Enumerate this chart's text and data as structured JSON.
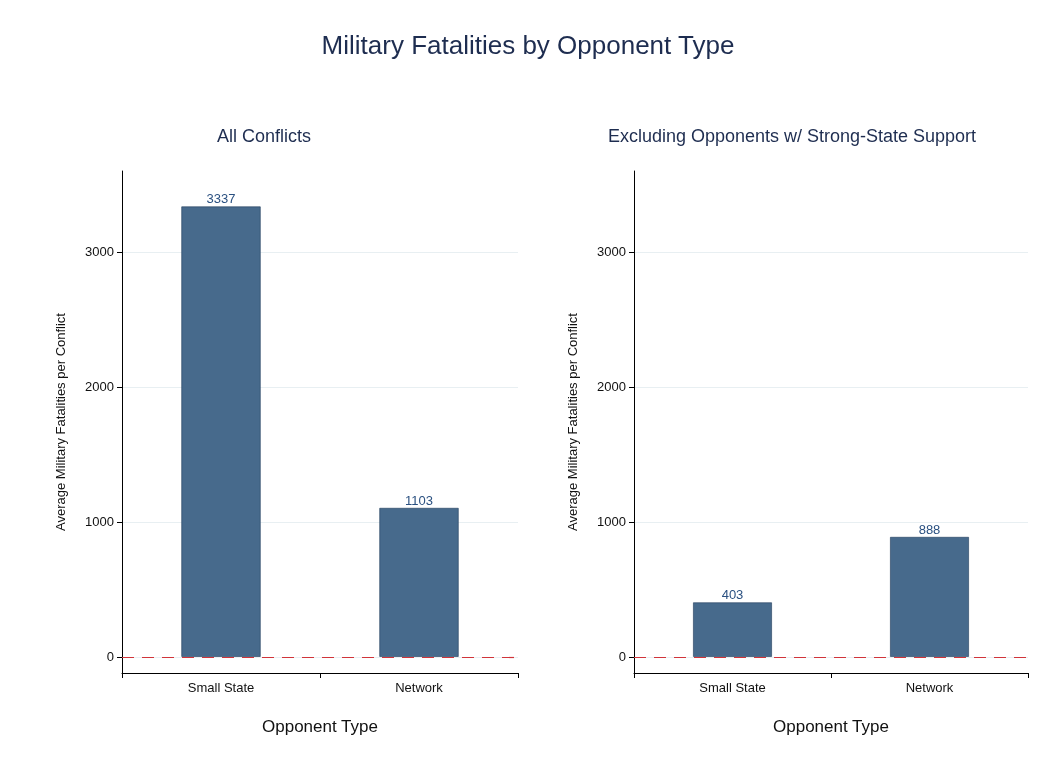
{
  "chart_data": [
    {
      "type": "bar",
      "title": "Military Fatalities by Opponent Type",
      "subtitle": "All Conflicts",
      "xlabel": "Opponent Type",
      "ylabel": "Average Military Fatalities per Conflict",
      "categories": [
        "Small State",
        "Network"
      ],
      "values": [
        3337,
        1103
      ],
      "color": "#476a8c",
      "ylim": [
        -120,
        3600
      ],
      "yticks": [
        0,
        1000,
        2000,
        3000
      ],
      "grid": "y",
      "data_labels": true,
      "ref_lines": [
        {
          "axis": "y",
          "value": 0,
          "color": "#d0343a",
          "line_style": "dashed"
        }
      ]
    },
    {
      "type": "bar",
      "subtitle": "Excluding Opponents w/ Strong-State Support",
      "xlabel": "Opponent Type",
      "ylabel": "Average Military Fatalities per Conflict",
      "categories": [
        "Small State",
        "Network"
      ],
      "values": [
        403,
        888
      ],
      "color": "#476a8c",
      "ylim": [
        -120,
        3600
      ],
      "yticks": [
        0,
        1000,
        2000,
        3000
      ],
      "grid": "y",
      "data_labels": true,
      "ref_lines": [
        {
          "axis": "y",
          "value": 0,
          "color": "#d0343a",
          "line_style": "dashed"
        }
      ]
    }
  ]
}
